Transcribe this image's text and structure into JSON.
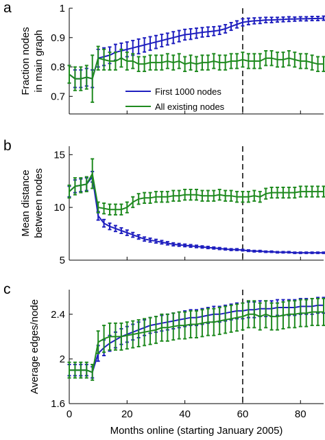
{
  "chart_data": [
    {
      "type": "line",
      "panel_letter": "a",
      "ylabel": "Fraction nodes in main graph",
      "ylabel_lines": [
        "Fraction nodes",
        "in main graph"
      ],
      "xlim": [
        0,
        88
      ],
      "ylim": [
        0.64,
        1.0
      ],
      "xticks": [
        0,
        20,
        40,
        60,
        80
      ],
      "yticks": [
        0.7,
        0.8,
        0.9,
        1
      ],
      "ytick_labels": [
        "0.7",
        "0.8",
        "0.9",
        "1"
      ],
      "vline_x": 60,
      "show_x_tick_labels": false,
      "legend": {
        "position": "lower-center",
        "entries": [
          "First 1000 nodes",
          "All existing nodes"
        ]
      },
      "series": [
        {
          "name": "First 1000 nodes",
          "color": "#1f1fbf",
          "x": [
            0,
            2,
            4,
            6,
            8,
            10,
            12,
            14,
            16,
            18,
            20,
            22,
            24,
            26,
            28,
            30,
            32,
            34,
            36,
            38,
            40,
            42,
            44,
            46,
            48,
            50,
            52,
            54,
            56,
            58,
            60,
            62,
            64,
            66,
            68,
            70,
            72,
            74,
            76,
            78,
            80,
            82,
            84,
            86,
            88
          ],
          "y": [
            0.775,
            0.76,
            0.76,
            0.765,
            0.76,
            0.83,
            0.835,
            0.84,
            0.85,
            0.855,
            0.86,
            0.865,
            0.87,
            0.875,
            0.88,
            0.885,
            0.89,
            0.895,
            0.9,
            0.905,
            0.91,
            0.912,
            0.915,
            0.918,
            0.92,
            0.922,
            0.925,
            0.93,
            0.938,
            0.945,
            0.952,
            0.955,
            0.957,
            0.958,
            0.96,
            0.96,
            0.961,
            0.962,
            0.963,
            0.963,
            0.964,
            0.964,
            0.965,
            0.965,
            0.966
          ],
          "err": [
            0.03,
            0.03,
            0.03,
            0.03,
            0.03,
            0.03,
            0.03,
            0.028,
            0.027,
            0.026,
            0.025,
            0.025,
            0.025,
            0.024,
            0.023,
            0.022,
            0.021,
            0.02,
            0.02,
            0.019,
            0.018,
            0.018,
            0.017,
            0.016,
            0.016,
            0.015,
            0.014,
            0.014,
            0.013,
            0.012,
            0.012,
            0.011,
            0.01,
            0.01,
            0.009,
            0.009,
            0.008,
            0.008,
            0.008,
            0.007,
            0.007,
            0.007,
            0.007,
            0.007,
            0.007
          ]
        },
        {
          "name": "All existing nodes",
          "color": "#1f8a1f",
          "x": [
            0,
            2,
            4,
            6,
            8,
            10,
            12,
            14,
            16,
            18,
            20,
            22,
            24,
            26,
            28,
            30,
            32,
            34,
            36,
            38,
            40,
            42,
            44,
            46,
            48,
            50,
            52,
            54,
            56,
            58,
            60,
            62,
            64,
            66,
            68,
            70,
            72,
            74,
            76,
            78,
            80,
            82,
            84,
            86,
            88
          ],
          "y": [
            0.775,
            0.76,
            0.76,
            0.765,
            0.76,
            0.83,
            0.825,
            0.82,
            0.82,
            0.83,
            0.82,
            0.82,
            0.81,
            0.81,
            0.815,
            0.815,
            0.815,
            0.82,
            0.815,
            0.82,
            0.81,
            0.815,
            0.81,
            0.815,
            0.815,
            0.82,
            0.815,
            0.815,
            0.82,
            0.82,
            0.825,
            0.82,
            0.82,
            0.82,
            0.83,
            0.83,
            0.825,
            0.825,
            0.83,
            0.825,
            0.82,
            0.82,
            0.815,
            0.81,
            0.81
          ],
          "err": [
            0.03,
            0.04,
            0.04,
            0.04,
            0.08,
            0.04,
            0.035,
            0.03,
            0.03,
            0.03,
            0.03,
            0.025,
            0.025,
            0.025,
            0.025,
            0.025,
            0.025,
            0.025,
            0.025,
            0.025,
            0.025,
            0.025,
            0.025,
            0.025,
            0.025,
            0.025,
            0.025,
            0.025,
            0.025,
            0.025,
            0.025,
            0.025,
            0.025,
            0.025,
            0.025,
            0.025,
            0.025,
            0.025,
            0.025,
            0.025,
            0.025,
            0.025,
            0.025,
            0.025,
            0.025
          ]
        }
      ]
    },
    {
      "type": "line",
      "panel_letter": "b",
      "ylabel": "Mean distance between nodes",
      "ylabel_lines": [
        "Mean distance",
        "between nodes"
      ],
      "xlim": [
        0,
        88
      ],
      "ylim": [
        5,
        15.8
      ],
      "xticks": [
        0,
        20,
        40,
        60,
        80
      ],
      "yticks": [
        5,
        10,
        15
      ],
      "ytick_labels": [
        "5",
        "10",
        "15"
      ],
      "vline_x": 60,
      "show_x_tick_labels": false,
      "series": [
        {
          "name": "First 1000 nodes",
          "color": "#1f1fbf",
          "x": [
            0,
            2,
            4,
            6,
            8,
            10,
            12,
            14,
            16,
            18,
            20,
            22,
            24,
            26,
            28,
            30,
            32,
            34,
            36,
            38,
            40,
            42,
            44,
            46,
            48,
            50,
            52,
            54,
            56,
            58,
            60,
            62,
            64,
            66,
            68,
            70,
            72,
            74,
            76,
            78,
            80,
            82,
            84,
            86,
            88
          ],
          "y": [
            11.5,
            12.0,
            12.1,
            12.2,
            12.9,
            9.2,
            8.5,
            8.2,
            8.0,
            7.8,
            7.6,
            7.4,
            7.2,
            7.0,
            6.9,
            6.8,
            6.7,
            6.6,
            6.5,
            6.45,
            6.4,
            6.35,
            6.3,
            6.25,
            6.2,
            6.15,
            6.1,
            6.05,
            6.0,
            6.0,
            5.95,
            5.9,
            5.85,
            5.85,
            5.8,
            5.8,
            5.75,
            5.75,
            5.75,
            5.7,
            5.7,
            5.7,
            5.7,
            5.7,
            5.7
          ],
          "err": [
            0.5,
            0.6,
            0.6,
            0.6,
            0.5,
            0.4,
            0.35,
            0.3,
            0.28,
            0.26,
            0.25,
            0.22,
            0.2,
            0.19,
            0.18,
            0.17,
            0.16,
            0.15,
            0.14,
            0.13,
            0.12,
            0.12,
            0.11,
            0.1,
            0.1,
            0.09,
            0.09,
            0.08,
            0.08,
            0.08,
            0.07,
            0.07,
            0.07,
            0.07,
            0.06,
            0.06,
            0.06,
            0.06,
            0.06,
            0.06,
            0.06,
            0.06,
            0.06,
            0.06,
            0.06
          ]
        },
        {
          "name": "All existing nodes",
          "color": "#1f8a1f",
          "x": [
            0,
            2,
            4,
            6,
            8,
            10,
            12,
            14,
            16,
            18,
            20,
            22,
            24,
            26,
            28,
            30,
            32,
            34,
            36,
            38,
            40,
            42,
            44,
            46,
            48,
            50,
            52,
            54,
            56,
            58,
            60,
            62,
            64,
            66,
            68,
            70,
            72,
            74,
            76,
            78,
            80,
            82,
            84,
            86,
            88
          ],
          "y": [
            11.5,
            12.0,
            12.1,
            12.2,
            13.2,
            10.0,
            9.9,
            9.8,
            9.8,
            9.8,
            10.0,
            10.5,
            10.8,
            10.9,
            10.9,
            11.0,
            11.0,
            11.0,
            11.1,
            11.1,
            11.2,
            11.2,
            11.2,
            11.1,
            11.1,
            11.1,
            11.2,
            11.1,
            11.1,
            11.0,
            11.0,
            11.0,
            11.1,
            11.0,
            11.3,
            11.4,
            11.4,
            11.4,
            11.4,
            11.4,
            11.5,
            11.5,
            11.5,
            11.5,
            11.5
          ],
          "err": [
            0.6,
            0.8,
            0.7,
            0.7,
            1.4,
            0.5,
            0.5,
            0.5,
            0.5,
            0.5,
            0.5,
            0.5,
            0.5,
            0.5,
            0.5,
            0.5,
            0.5,
            0.5,
            0.5,
            0.5,
            0.5,
            0.5,
            0.5,
            0.5,
            0.5,
            0.5,
            0.5,
            0.5,
            0.5,
            0.5,
            0.5,
            0.5,
            0.5,
            0.5,
            0.5,
            0.5,
            0.5,
            0.5,
            0.5,
            0.5,
            0.5,
            0.5,
            0.5,
            0.5,
            0.5
          ]
        }
      ]
    },
    {
      "type": "line",
      "panel_letter": "c",
      "ylabel": "Average edges/node",
      "ylabel_lines": [
        "Average edges/node"
      ],
      "xlabel": "Months online (starting January 2005)",
      "xlim": [
        0,
        88
      ],
      "ylim": [
        1.6,
        2.62
      ],
      "xticks": [
        0,
        20,
        40,
        60,
        80
      ],
      "yticks": [
        1.6,
        2.0,
        2.4
      ],
      "ytick_labels": [
        "1.6",
        "2",
        "2.4"
      ],
      "vline_x": 60,
      "show_x_tick_labels": true,
      "series": [
        {
          "name": "First 1000 nodes",
          "color": "#1f1fbf",
          "x": [
            0,
            2,
            4,
            6,
            8,
            10,
            12,
            14,
            16,
            18,
            20,
            22,
            24,
            26,
            28,
            30,
            32,
            34,
            36,
            38,
            40,
            42,
            44,
            46,
            48,
            50,
            52,
            54,
            56,
            58,
            60,
            62,
            64,
            66,
            68,
            70,
            72,
            74,
            76,
            78,
            80,
            82,
            84,
            86,
            88
          ],
          "y": [
            1.9,
            1.9,
            1.9,
            1.9,
            1.88,
            2.05,
            2.1,
            2.14,
            2.17,
            2.2,
            2.22,
            2.24,
            2.26,
            2.28,
            2.3,
            2.31,
            2.32,
            2.33,
            2.34,
            2.35,
            2.36,
            2.37,
            2.37,
            2.38,
            2.39,
            2.4,
            2.4,
            2.41,
            2.42,
            2.43,
            2.43,
            2.44,
            2.44,
            2.45,
            2.45,
            2.45,
            2.46,
            2.46,
            2.46,
            2.46,
            2.47,
            2.47,
            2.47,
            2.48,
            2.48
          ],
          "err": [
            0.05,
            0.05,
            0.05,
            0.05,
            0.05,
            0.07,
            0.07,
            0.07,
            0.07,
            0.07,
            0.07,
            0.07,
            0.07,
            0.07,
            0.07,
            0.07,
            0.07,
            0.07,
            0.07,
            0.07,
            0.07,
            0.07,
            0.07,
            0.07,
            0.07,
            0.07,
            0.07,
            0.07,
            0.07,
            0.07,
            0.07,
            0.07,
            0.07,
            0.07,
            0.07,
            0.07,
            0.07,
            0.07,
            0.07,
            0.07,
            0.07,
            0.07,
            0.07,
            0.07,
            0.07
          ]
        },
        {
          "name": "All existing nodes",
          "color": "#1f8a1f",
          "x": [
            0,
            2,
            4,
            6,
            8,
            10,
            12,
            14,
            16,
            18,
            20,
            22,
            24,
            26,
            28,
            30,
            32,
            34,
            36,
            38,
            40,
            42,
            44,
            46,
            48,
            50,
            52,
            54,
            56,
            58,
            60,
            62,
            64,
            66,
            68,
            70,
            72,
            74,
            76,
            78,
            80,
            82,
            84,
            86,
            88
          ],
          "y": [
            1.9,
            1.9,
            1.9,
            1.9,
            1.88,
            2.15,
            2.18,
            2.2,
            2.2,
            2.2,
            2.21,
            2.22,
            2.23,
            2.24,
            2.25,
            2.26,
            2.28,
            2.28,
            2.29,
            2.3,
            2.3,
            2.31,
            2.31,
            2.32,
            2.33,
            2.33,
            2.34,
            2.35,
            2.36,
            2.37,
            2.38,
            2.4,
            2.4,
            2.38,
            2.4,
            2.38,
            2.38,
            2.39,
            2.4,
            2.4,
            2.41,
            2.41,
            2.42,
            2.42,
            2.42
          ],
          "err": [
            0.07,
            0.07,
            0.07,
            0.07,
            0.07,
            0.1,
            0.12,
            0.12,
            0.12,
            0.12,
            0.12,
            0.12,
            0.12,
            0.12,
            0.12,
            0.12,
            0.12,
            0.12,
            0.12,
            0.12,
            0.12,
            0.12,
            0.12,
            0.12,
            0.12,
            0.12,
            0.12,
            0.12,
            0.12,
            0.12,
            0.12,
            0.12,
            0.12,
            0.12,
            0.12,
            0.12,
            0.12,
            0.12,
            0.12,
            0.12,
            0.12,
            0.12,
            0.12,
            0.12,
            0.12
          ]
        }
      ]
    }
  ]
}
